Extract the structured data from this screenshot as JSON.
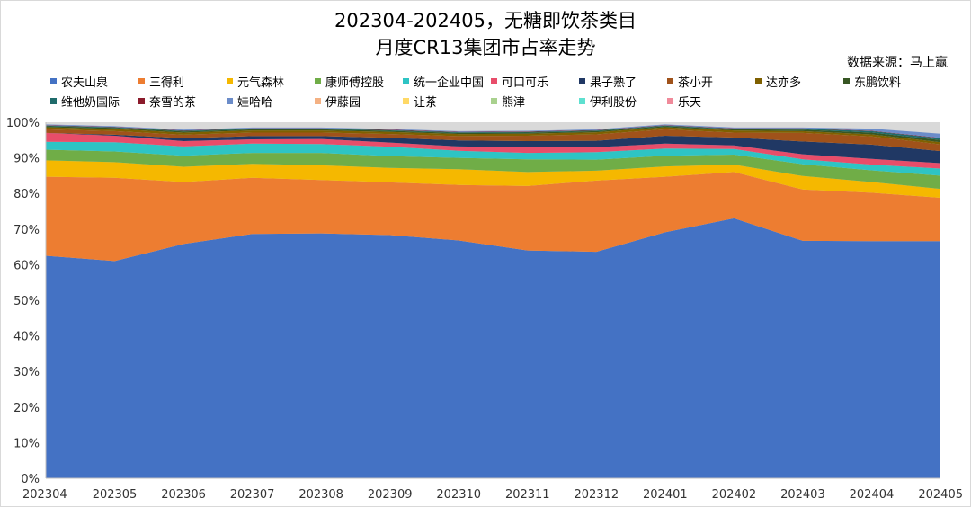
{
  "title_line1": "202304-202405，无糖即饮茶类目",
  "title_line2": "月度CR13集团市占率走势",
  "source": "数据来源：马上赢",
  "chart_data": {
    "type": "area",
    "stacked": true,
    "title": "202304-202405，无糖即饮茶类目 月度CR13集团市占率走势",
    "x": [
      "202304",
      "202305",
      "202306",
      "202307",
      "202308",
      "202309",
      "202310",
      "202311",
      "202312",
      "202401",
      "202402",
      "202403",
      "202404",
      "202405"
    ],
    "y_ticks": [
      "0%",
      "10%",
      "20%",
      "30%",
      "40%",
      "50%",
      "60%",
      "70%",
      "80%",
      "90%",
      "100%"
    ],
    "ylim": [
      0,
      100
    ],
    "grid": false,
    "legend_position": "top",
    "background_color": "#d9d9d9",
    "series": [
      {
        "name": "农夫山泉",
        "color": "#4472c4",
        "values": [
          62.5,
          61.0,
          65.8,
          68.6,
          68.8,
          68.3,
          66.8,
          64.0,
          63.6,
          69.1,
          73.0,
          66.7,
          66.6,
          66.6
        ]
      },
      {
        "name": "三得利",
        "color": "#ed7d31",
        "values": [
          22.2,
          23.4,
          17.4,
          15.8,
          15.0,
          14.8,
          15.6,
          18.1,
          20.0,
          15.6,
          13.0,
          14.4,
          13.6,
          12.2
        ]
      },
      {
        "name": "元气森林",
        "color": "#f5b800",
        "values": [
          4.6,
          4.4,
          4.3,
          3.9,
          4.1,
          4.1,
          4.4,
          3.9,
          2.8,
          2.9,
          2.1,
          3.8,
          3.0,
          2.5
        ]
      },
      {
        "name": "康师傅控股",
        "color": "#70ad47",
        "values": [
          3.0,
          3.0,
          3.1,
          3.1,
          3.5,
          3.3,
          3.2,
          3.6,
          3.1,
          3.0,
          2.8,
          3.3,
          3.3,
          3.7
        ]
      },
      {
        "name": "统一企业中国",
        "color": "#2ec4c4",
        "values": [
          2.2,
          2.6,
          2.6,
          2.6,
          2.5,
          2.6,
          2.0,
          1.8,
          2.1,
          2.0,
          1.6,
          1.4,
          1.6,
          2.0
        ]
      },
      {
        "name": "可口可乐",
        "color": "#e84d6a",
        "values": [
          2.5,
          1.8,
          1.5,
          1.2,
          1.4,
          1.2,
          1.2,
          1.6,
          1.4,
          1.4,
          1.0,
          1.4,
          1.6,
          1.5
        ]
      },
      {
        "name": "果子熟了",
        "color": "#203864",
        "values": [
          0.0,
          0.3,
          0.8,
          0.9,
          0.8,
          1.3,
          1.7,
          1.7,
          1.8,
          2.2,
          2.2,
          3.6,
          4.0,
          3.4
        ]
      },
      {
        "name": "茶小开",
        "color": "#a0521a",
        "values": [
          1.0,
          1.0,
          1.0,
          1.0,
          1.0,
          1.1,
          1.2,
          1.5,
          1.8,
          1.8,
          1.4,
          2.4,
          2.3,
          1.9
        ]
      },
      {
        "name": "达亦多",
        "color": "#7f6000",
        "values": [
          0.6,
          0.6,
          0.6,
          0.6,
          0.6,
          0.6,
          0.6,
          0.6,
          0.6,
          0.6,
          0.6,
          0.5,
          0.6,
          0.6
        ]
      },
      {
        "name": "东鹏饮料",
        "color": "#375623",
        "values": [
          0.3,
          0.3,
          0.3,
          0.3,
          0.3,
          0.3,
          0.3,
          0.3,
          0.3,
          0.3,
          0.3,
          0.4,
          0.5,
          0.6
        ]
      },
      {
        "name": "维他奶国际",
        "color": "#1f6b6b",
        "values": [
          0.2,
          0.2,
          0.2,
          0.2,
          0.2,
          0.2,
          0.2,
          0.2,
          0.2,
          0.2,
          0.2,
          0.3,
          0.4,
          0.5
        ]
      },
      {
        "name": "奈雪的茶",
        "color": "#8b1a2b",
        "values": [
          0.1,
          0.1,
          0.1,
          0.1,
          0.1,
          0.1,
          0.1,
          0.1,
          0.1,
          0.1,
          0.1,
          0.1,
          0.1,
          0.1
        ]
      },
      {
        "name": "娃哈哈",
        "color": "#6b8cc9",
        "values": [
          0.2,
          0.2,
          0.2,
          0.2,
          0.2,
          0.2,
          0.2,
          0.2,
          0.2,
          0.2,
          0.2,
          0.2,
          0.6,
          1.2
        ]
      },
      {
        "name": "伊藤园",
        "color": "#f4b183",
        "values": [
          0.0,
          0.0,
          0.0,
          0.0,
          0.0,
          0.0,
          0.0,
          0.0,
          0.0,
          0.0,
          0.0,
          0.0,
          0.0,
          0.0
        ]
      },
      {
        "name": "让茶",
        "color": "#ffd966",
        "values": [
          0.0,
          0.0,
          0.0,
          0.0,
          0.0,
          0.0,
          0.0,
          0.0,
          0.0,
          0.0,
          0.0,
          0.0,
          0.0,
          0.0
        ]
      },
      {
        "name": "熊津",
        "color": "#a9d18e",
        "values": [
          0.0,
          0.0,
          0.0,
          0.0,
          0.0,
          0.0,
          0.0,
          0.0,
          0.0,
          0.0,
          0.0,
          0.0,
          0.0,
          0.0
        ]
      },
      {
        "name": "伊利股份",
        "color": "#5ee0d0",
        "values": [
          0.0,
          0.0,
          0.0,
          0.0,
          0.0,
          0.0,
          0.0,
          0.0,
          0.0,
          0.0,
          0.0,
          0.0,
          0.0,
          0.0
        ]
      },
      {
        "name": "乐天",
        "color": "#f08a9a",
        "values": [
          0.0,
          0.0,
          0.0,
          0.0,
          0.0,
          0.0,
          0.0,
          0.0,
          0.0,
          0.0,
          0.0,
          0.0,
          0.0,
          0.0
        ]
      }
    ]
  }
}
